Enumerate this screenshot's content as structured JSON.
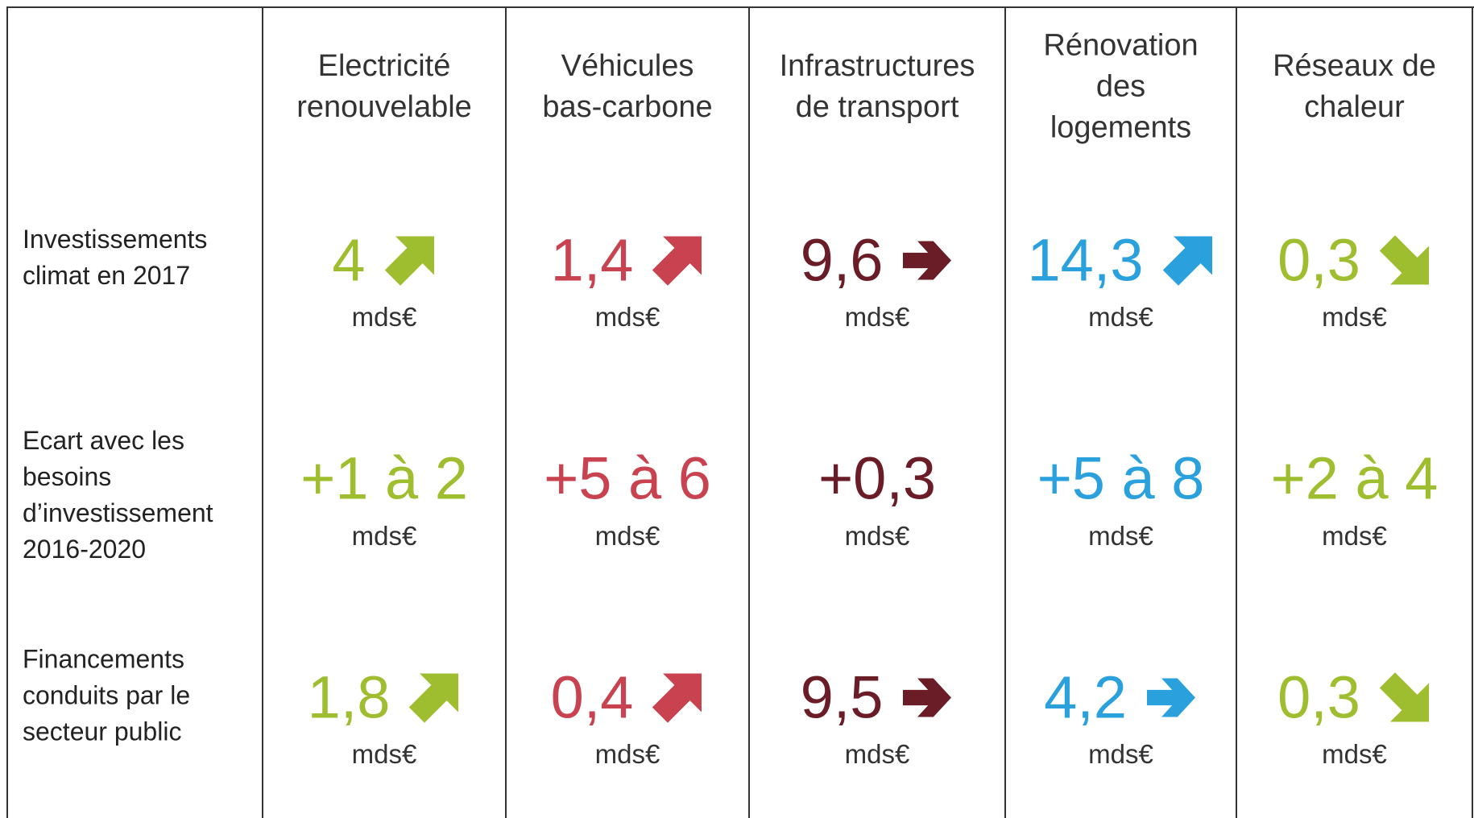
{
  "table": {
    "columns": [
      [
        "Electricité",
        "renouvelable"
      ],
      [
        "Véhicules",
        "bas-carbone"
      ],
      [
        "Infrastructures",
        "de transport"
      ],
      [
        "Rénovation",
        "des",
        "logements"
      ],
      [
        "Réseaux de",
        "chaleur"
      ]
    ],
    "rows": [
      {
        "label": [
          "Investissements",
          "climat en 2017"
        ],
        "cells": [
          {
            "value": "4",
            "unit": "mds€"
          },
          {
            "value": "1,4",
            "unit": "mds€"
          },
          {
            "value": "9,6",
            "unit": "mds€"
          },
          {
            "value": "14,3",
            "unit": "mds€"
          },
          {
            "value": "0,3",
            "unit": "mds€"
          }
        ]
      },
      {
        "label": [
          "Ecart avec les",
          "besoins",
          "d’investissement",
          "2016-2020"
        ],
        "cells": [
          {
            "value": "+1 à 2",
            "unit": "mds€"
          },
          {
            "value": "+5 à 6",
            "unit": "mds€"
          },
          {
            "value": "+0,3",
            "unit": "mds€"
          },
          {
            "value": "+5 à 8",
            "unit": "mds€"
          },
          {
            "value": "+2 à 4",
            "unit": "mds€"
          }
        ]
      },
      {
        "label": [
          "Financements",
          "conduits par le",
          "secteur public"
        ],
        "cells": [
          {
            "value": "1,8",
            "unit": "mds€"
          },
          {
            "value": "0,4",
            "unit": "mds€"
          },
          {
            "value": "9,5",
            "unit": "mds€"
          },
          {
            "value": "4,2",
            "unit": "mds€"
          },
          {
            "value": "0,3",
            "unit": "mds€"
          }
        ]
      }
    ]
  }
}
